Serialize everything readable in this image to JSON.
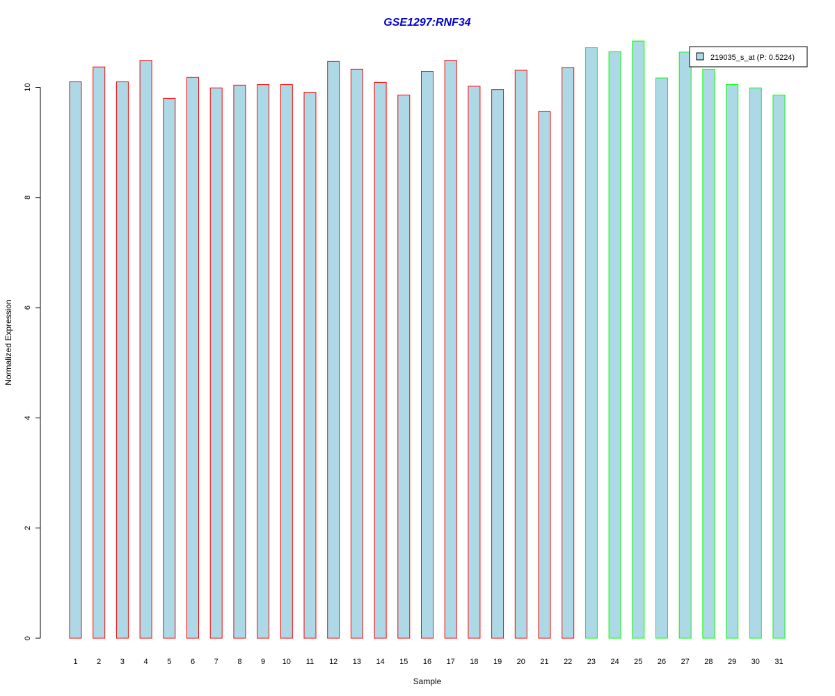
{
  "chart_data": {
    "type": "bar",
    "title": "GSE1297:RNF34",
    "title_color": "#0000CC",
    "xlabel": "Sample",
    "ylabel": "Normalized Expression",
    "ylim": [
      0,
      10.85
    ],
    "yticks": [
      0,
      2,
      4,
      6,
      8,
      10
    ],
    "grid": false,
    "categories": [
      "1",
      "2",
      "3",
      "4",
      "5",
      "6",
      "7",
      "8",
      "9",
      "10",
      "11",
      "12",
      "13",
      "14",
      "15",
      "16",
      "17",
      "18",
      "19",
      "20",
      "21",
      "22",
      "23",
      "24",
      "25",
      "26",
      "27",
      "28",
      "29",
      "30",
      "31"
    ],
    "values": [
      10.1,
      10.37,
      10.1,
      10.49,
      9.8,
      10.18,
      9.99,
      10.04,
      10.05,
      10.05,
      9.91,
      10.47,
      10.33,
      10.09,
      9.86,
      10.29,
      10.49,
      10.02,
      9.96,
      10.31,
      9.56,
      10.36,
      10.72,
      10.65,
      10.84,
      10.17,
      10.64,
      10.33,
      10.05,
      9.99,
      9.86
    ],
    "groups": [
      "red",
      "red",
      "red",
      "red",
      "red",
      "red",
      "red",
      "red",
      "red",
      "red",
      "red",
      "red",
      "red",
      "red",
      "red",
      "red",
      "red",
      "red",
      "red",
      "red",
      "red",
      "red",
      "green",
      "green",
      "green",
      "green",
      "green",
      "green",
      "green",
      "green",
      "green"
    ],
    "colors": {
      "fill": "#ADD8E6",
      "red": "#FF0000",
      "green": "#00FF00"
    },
    "legend": {
      "entries": [
        "219035_s_at (P: 0.5224)"
      ],
      "placement": "top-right"
    }
  }
}
